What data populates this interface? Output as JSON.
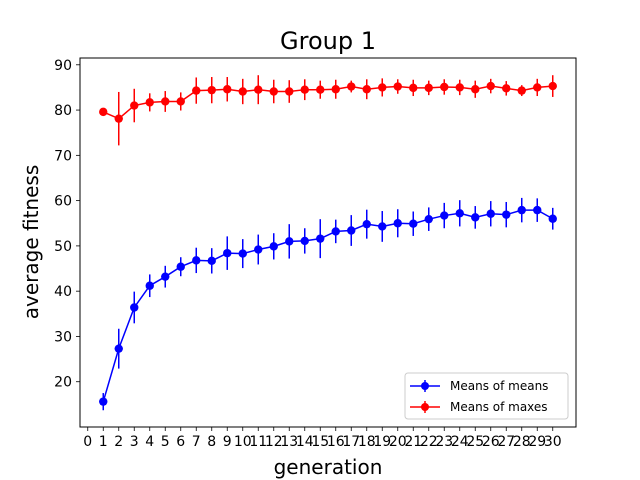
{
  "chart_data": {
    "type": "line",
    "title": "Group 1",
    "xlabel": "generation",
    "ylabel": "average fitness",
    "xlim": [
      -0.5,
      31.5
    ],
    "ylim": [
      10,
      91.5
    ],
    "x_ticks": [
      0,
      1,
      2,
      3,
      4,
      5,
      6,
      7,
      8,
      9,
      10,
      11,
      12,
      13,
      14,
      15,
      16,
      17,
      18,
      19,
      20,
      21,
      22,
      23,
      24,
      25,
      26,
      27,
      28,
      29,
      30
    ],
    "y_ticks": [
      20,
      30,
      40,
      50,
      60,
      70,
      80,
      90
    ],
    "grid": false,
    "legend_position": "lower-right",
    "x": [
      1,
      2,
      3,
      4,
      5,
      6,
      7,
      8,
      9,
      10,
      11,
      12,
      13,
      14,
      15,
      16,
      17,
      18,
      19,
      20,
      21,
      22,
      23,
      24,
      25,
      26,
      27,
      28,
      29,
      30
    ],
    "series": [
      {
        "name": "Means of means",
        "color": "#0000ff",
        "values": [
          15.6,
          27.3,
          36.4,
          41.2,
          43.2,
          45.4,
          46.8,
          46.7,
          48.4,
          48.3,
          49.2,
          49.9,
          51.0,
          51.1,
          51.6,
          53.2,
          53.4,
          54.8,
          54.3,
          55.0,
          54.9,
          55.9,
          56.7,
          57.2,
          56.3,
          57.1,
          56.9,
          57.9,
          57.9,
          56.0
        ],
        "errors": [
          1.9,
          4.4,
          3.5,
          2.5,
          2.4,
          2.1,
          2.8,
          2.8,
          3.7,
          3.2,
          3.3,
          2.9,
          3.8,
          2.8,
          4.3,
          2.6,
          3.4,
          3.2,
          3.4,
          3.1,
          2.7,
          2.6,
          2.8,
          2.9,
          2.5,
          2.8,
          2.8,
          2.7,
          2.6,
          2.4
        ]
      },
      {
        "name": "Means of maxes",
        "color": "#ff0000",
        "values": [
          79.6,
          78.1,
          81.0,
          81.7,
          81.9,
          81.9,
          84.3,
          84.4,
          84.6,
          84.1,
          84.5,
          84.1,
          84.1,
          84.5,
          84.5,
          84.6,
          85.2,
          84.6,
          85.0,
          85.2,
          84.9,
          84.9,
          85.1,
          85.0,
          84.6,
          85.3,
          84.8,
          84.3,
          85.0,
          85.3
        ],
        "errors": [
          0.0,
          5.9,
          3.7,
          2.0,
          2.3,
          2.0,
          2.9,
          2.9,
          2.7,
          2.8,
          3.2,
          2.6,
          2.5,
          2.3,
          2.0,
          2.1,
          1.3,
          2.2,
          2.0,
          1.6,
          1.8,
          1.6,
          1.7,
          1.7,
          1.9,
          1.6,
          1.6,
          1.2,
          1.9,
          2.4
        ]
      }
    ]
  }
}
